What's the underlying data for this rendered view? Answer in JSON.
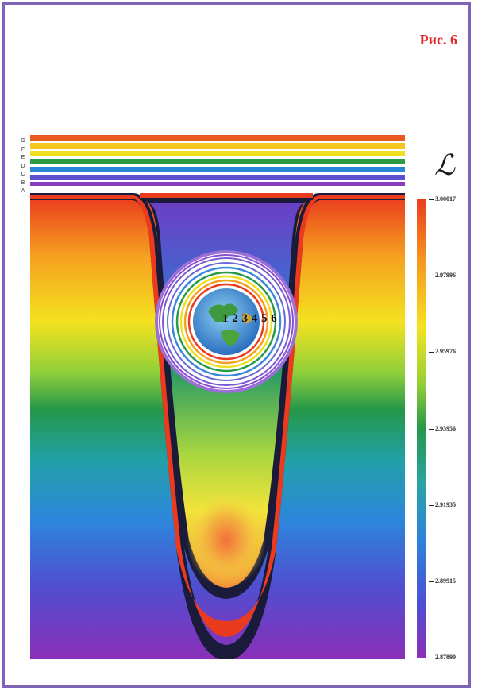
{
  "figure_label": "Рис. 6",
  "level_letters": [
    "G",
    "F",
    "E",
    "D",
    "C",
    "B",
    "A"
  ],
  "earth_label": "1 2 3 4 5 6",
  "colorbar": {
    "title": "ℒ",
    "ticks": [
      "3.00017",
      "2.97996",
      "2.95976",
      "2.93956",
      "2.91935",
      "2.89915",
      "2.87890"
    ],
    "colors": [
      "#ea3d1e",
      "#f6a120",
      "#f6e51f",
      "#a7d437",
      "#2aa043",
      "#1f8f8d",
      "#2c7fd6",
      "#4a56cf",
      "#7d36c0",
      "#8c2fb9"
    ]
  },
  "colors": {
    "frame": "#7e63b8",
    "label": "#e0262a"
  }
}
